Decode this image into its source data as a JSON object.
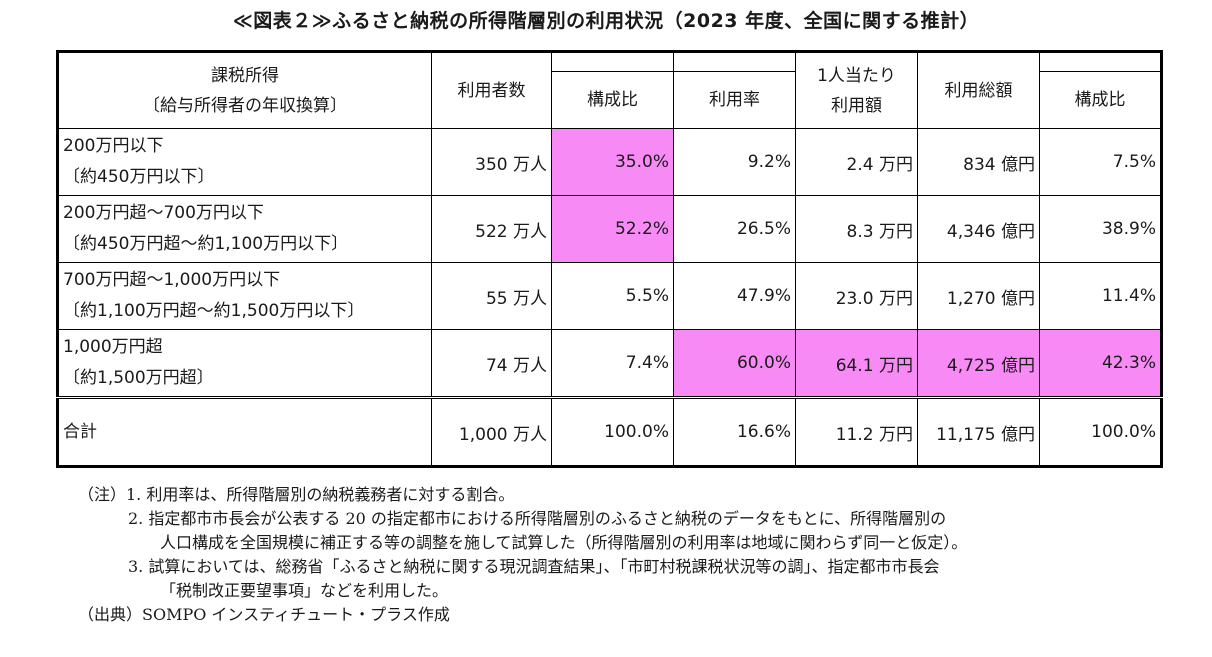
{
  "title": "≪図表２≫ふるさと納税の所得階層別の利用状況（2023 年度、全国に関する推計）",
  "table": {
    "headers": {
      "income_line1": "課税所得",
      "income_line2": "〔給与所得者の年収換算〕",
      "users": "利用者数",
      "composition": "構成比",
      "usage_rate": "利用率",
      "per_person_line1": "1人当たり",
      "per_person_line2": "利用額",
      "total_amount": "利用総額",
      "composition2": "構成比"
    },
    "rows": [
      {
        "cat_line1": "200万円以下",
        "cat_line2": "〔約450万円以下〕",
        "users": "350 万人",
        "composition": "35.0%",
        "usage_rate": "9.2%",
        "per_person": "2.4 万円",
        "total_amount": "834 億円",
        "composition2": "7.5%"
      },
      {
        "cat_line1": "200万円超～700万円以下",
        "cat_line2": "〔約450万円超～約1,100万円以下〕",
        "users": "522 万人",
        "composition": "52.2%",
        "usage_rate": "26.5%",
        "per_person": "8.3 万円",
        "total_amount": "4,346 億円",
        "composition2": "38.9%"
      },
      {
        "cat_line1": "700万円超～1,000万円以下",
        "cat_line2": "〔約1,100万円超～約1,500万円以下〕",
        "users": "55 万人",
        "composition": "5.5%",
        "usage_rate": "47.9%",
        "per_person": "23.0 万円",
        "total_amount": "1,270 億円",
        "composition2": "11.4%"
      },
      {
        "cat_line1": "1,000万円超",
        "cat_line2": "〔約1,500万円超〕",
        "users": "74 万人",
        "composition": "7.4%",
        "usage_rate": "60.0%",
        "per_person": "64.1 万円",
        "total_amount": "4,725 億円",
        "composition2": "42.3%"
      }
    ],
    "total": {
      "label": "合計",
      "users": "1,000 万人",
      "composition": "100.0%",
      "usage_rate": "16.6%",
      "per_person": "11.2 万円",
      "total_amount": "11,175 億円",
      "composition2": "100.0%"
    },
    "highlight_color": "#f88af5"
  },
  "notes": {
    "note1": "（注）1. 利用率は、所得階層別の納税義務者に対する割合。",
    "note2a": "2. 指定都市市長会が公表する 20 の指定都市における所得階層別のふるさと納税のデータをもとに、所得階層別の",
    "note2b": "人口構成を全国規模に補正する等の調整を施して試算した（所得階層別の利用率は地域に関わらず同一と仮定）。",
    "note3a": "3. 試算においては、総務省「ふるさと納税に関する現況調査結果」、「市町村税課税状況等の調」、指定都市市長会",
    "note3b": "「税制改正要望事項」などを利用した。",
    "source": "（出典）SOMPO インスティチュート・プラス作成"
  }
}
